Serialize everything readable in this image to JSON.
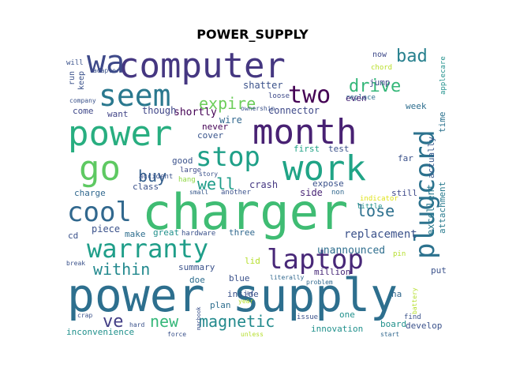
{
  "title": "POWER_SUPPLY",
  "words": [
    {
      "text": "computer",
      "size": 44,
      "color": "#453781"
    },
    {
      "text": "charger",
      "size": 62,
      "color": "#3fbc73"
    },
    {
      "text": "power supply",
      "size": 58,
      "color": "#2d6f8e"
    },
    {
      "text": "power",
      "size": 44,
      "color": "#28ae80"
    },
    {
      "text": "month",
      "size": 44,
      "color": "#482173"
    },
    {
      "text": "work",
      "size": 44,
      "color": "#20a486"
    },
    {
      "text": "go",
      "size": 44,
      "color": "#5ec962"
    },
    {
      "text": "wa",
      "size": 40,
      "color": "#3e4989"
    },
    {
      "text": "seem",
      "size": 38,
      "color": "#2a788e"
    },
    {
      "text": "cool",
      "size": 34,
      "color": "#31688e"
    },
    {
      "text": "stop",
      "size": 34,
      "color": "#1fa088"
    },
    {
      "text": "laptop",
      "size": 34,
      "color": "#482878"
    },
    {
      "text": "warranty",
      "size": 32,
      "color": "#1f9e89"
    },
    {
      "text": "plugcord",
      "size": 34,
      "color": "#2c728e"
    },
    {
      "text": "two",
      "size": 30,
      "color": "#440154"
    },
    {
      "text": "bad",
      "size": 22,
      "color": "#27808e"
    },
    {
      "text": "drive",
      "size": 22,
      "color": "#35b779"
    },
    {
      "text": "expire",
      "size": 20,
      "color": "#6ccd5a"
    },
    {
      "text": "buy",
      "size": 20,
      "color": "#355f8d"
    },
    {
      "text": "well",
      "size": 20,
      "color": "#1e9c89"
    },
    {
      "text": "lose",
      "size": 20,
      "color": "#2d708e"
    },
    {
      "text": "within",
      "size": 20,
      "color": "#23898e"
    },
    {
      "text": "magnetic",
      "size": 20,
      "color": "#238a8d"
    },
    {
      "text": "new",
      "size": 20,
      "color": "#35b779"
    },
    {
      "text": "ve",
      "size": 22,
      "color": "#433e85"
    },
    {
      "text": "replacement",
      "size": 14,
      "color": "#3b528b"
    },
    {
      "text": "unannounced",
      "size": 13,
      "color": "#2e6e8e"
    },
    {
      "text": "excellent",
      "size": 12,
      "color": "#29798e"
    },
    {
      "text": "attachment",
      "size": 11,
      "color": "#297b8e"
    },
    {
      "text": "actually",
      "size": 11,
      "color": "#38598c"
    },
    {
      "text": "time",
      "size": 11,
      "color": "#2c728e"
    },
    {
      "text": "applecare",
      "size": 9,
      "color": "#21918c"
    },
    {
      "text": "connector",
      "size": 12,
      "color": "#3e4989"
    },
    {
      "text": "shatter",
      "size": 12,
      "color": "#3b528b"
    },
    {
      "text": "shortly",
      "size": 13,
      "color": "#440154"
    },
    {
      "text": "though",
      "size": 12,
      "color": "#404688"
    },
    {
      "text": "want",
      "size": 11,
      "color": "#414487"
    },
    {
      "text": "come",
      "size": 11,
      "color": "#3f4889"
    },
    {
      "text": "wire",
      "size": 12,
      "color": "#31688e"
    },
    {
      "text": "never",
      "size": 11,
      "color": "#440154"
    },
    {
      "text": "cover",
      "size": 11,
      "color": "#39558c"
    },
    {
      "text": "ownership",
      "size": 8,
      "color": "#3b528b"
    },
    {
      "text": "loose",
      "size": 9,
      "color": "#3e4a89"
    },
    {
      "text": "replace",
      "size": 9,
      "color": "#2e6e8e"
    },
    {
      "text": "even",
      "size": 11,
      "color": "#482878"
    },
    {
      "text": "now",
      "size": 10,
      "color": "#3e4989"
    },
    {
      "text": "chord",
      "size": 9,
      "color": "#b8de29"
    },
    {
      "text": "jump",
      "size": 11,
      "color": "#3e4a89"
    },
    {
      "text": "week",
      "size": 11,
      "color": "#2e6e8e"
    },
    {
      "text": "first",
      "size": 11,
      "color": "#20a386"
    },
    {
      "text": "test",
      "size": 11,
      "color": "#3b528b"
    },
    {
      "text": "far",
      "size": 11,
      "color": "#3b528b"
    },
    {
      "text": "indicator",
      "size": 9,
      "color": "#dfe318"
    },
    {
      "text": "expose",
      "size": 11,
      "color": "#3b528b"
    },
    {
      "text": "non",
      "size": 9,
      "color": "#31688e"
    },
    {
      "text": "little",
      "size": 9,
      "color": "#21918c"
    },
    {
      "text": "still",
      "size": 11,
      "color": "#3e4989"
    },
    {
      "text": "side",
      "size": 12,
      "color": "#482576"
    },
    {
      "text": "crash",
      "size": 12,
      "color": "#453882"
    },
    {
      "text": "another",
      "size": 9,
      "color": "#3b528b"
    },
    {
      "text": "small",
      "size": 8,
      "color": "#38598c"
    },
    {
      "text": "story",
      "size": 8,
      "color": "#3b528b"
    },
    {
      "text": "accident",
      "size": 9,
      "color": "#3b528b"
    },
    {
      "text": "good",
      "size": 11,
      "color": "#3b528b"
    },
    {
      "text": "large",
      "size": 9,
      "color": "#3e4989"
    },
    {
      "text": "hang",
      "size": 9,
      "color": "#8fd744"
    },
    {
      "text": "class",
      "size": 11,
      "color": "#3b528b"
    },
    {
      "text": "charge",
      "size": 11,
      "color": "#31688e"
    },
    {
      "text": "piece",
      "size": 12,
      "color": "#3b528b"
    },
    {
      "text": "make",
      "size": 11,
      "color": "#2e6e8e"
    },
    {
      "text": "great",
      "size": 11,
      "color": "#21918c"
    },
    {
      "text": "hardware",
      "size": 9,
      "color": "#3b528b"
    },
    {
      "text": "three",
      "size": 11,
      "color": "#31688e"
    },
    {
      "text": "summary",
      "size": 11,
      "color": "#3b528b"
    },
    {
      "text": "lid",
      "size": 11,
      "color": "#b5de2b"
    },
    {
      "text": "doe",
      "size": 11,
      "color": "#2e6e8e"
    },
    {
      "text": "blue",
      "size": 11,
      "color": "#3b528b"
    },
    {
      "text": "literally",
      "size": 8,
      "color": "#31688e"
    },
    {
      "text": "million",
      "size": 11,
      "color": "#482878"
    },
    {
      "text": "put",
      "size": 11,
      "color": "#3b528b"
    },
    {
      "text": "ha",
      "size": 11,
      "color": "#31688e"
    },
    {
      "text": "find",
      "size": 9,
      "color": "#3b528b"
    },
    {
      "text": "one",
      "size": 11,
      "color": "#21918c"
    },
    {
      "text": "issue",
      "size": 9,
      "color": "#3b528b"
    },
    {
      "text": "problem",
      "size": 8,
      "color": "#31688e"
    },
    {
      "text": "board",
      "size": 11,
      "color": "#21918c"
    },
    {
      "text": "develop",
      "size": 11,
      "color": "#3b528b"
    },
    {
      "text": "start",
      "size": 8,
      "color": "#31688e"
    },
    {
      "text": "battery",
      "size": 8,
      "color": "#b5de2b"
    },
    {
      "text": "pin",
      "size": 9,
      "color": "#b5de2b"
    },
    {
      "text": "innovation",
      "size": 11,
      "color": "#21918c"
    },
    {
      "text": "unless",
      "size": 8,
      "color": "#b5de2b"
    },
    {
      "text": "inside",
      "size": 11,
      "color": "#3b528b"
    },
    {
      "text": "plan",
      "size": 11,
      "color": "#2e6e8e"
    },
    {
      "text": "year",
      "size": 8,
      "color": "#b5de2b"
    },
    {
      "text": "ac",
      "size": 8,
      "color": "#3b528b"
    },
    {
      "text": "macbook",
      "size": 7,
      "color": "#3b528b"
    },
    {
      "text": "force",
      "size": 8,
      "color": "#3b528b"
    },
    {
      "text": "hard",
      "size": 8,
      "color": "#3b528b"
    },
    {
      "text": "inconvenience",
      "size": 11,
      "color": "#21918c"
    },
    {
      "text": "crap",
      "size": 8,
      "color": "#3b528b"
    },
    {
      "text": "break",
      "size": 8,
      "color": "#3b528b"
    },
    {
      "text": "cd",
      "size": 11,
      "color": "#3b528b"
    },
    {
      "text": "will",
      "size": 9,
      "color": "#3b528b"
    },
    {
      "text": "adapter",
      "size": 8,
      "color": "#3b528b"
    },
    {
      "text": "run",
      "size": 10,
      "color": "#3b528b"
    },
    {
      "text": "keep",
      "size": 10,
      "color": "#3b528b"
    },
    {
      "text": "company",
      "size": 8,
      "color": "#3b528b"
    }
  ]
}
